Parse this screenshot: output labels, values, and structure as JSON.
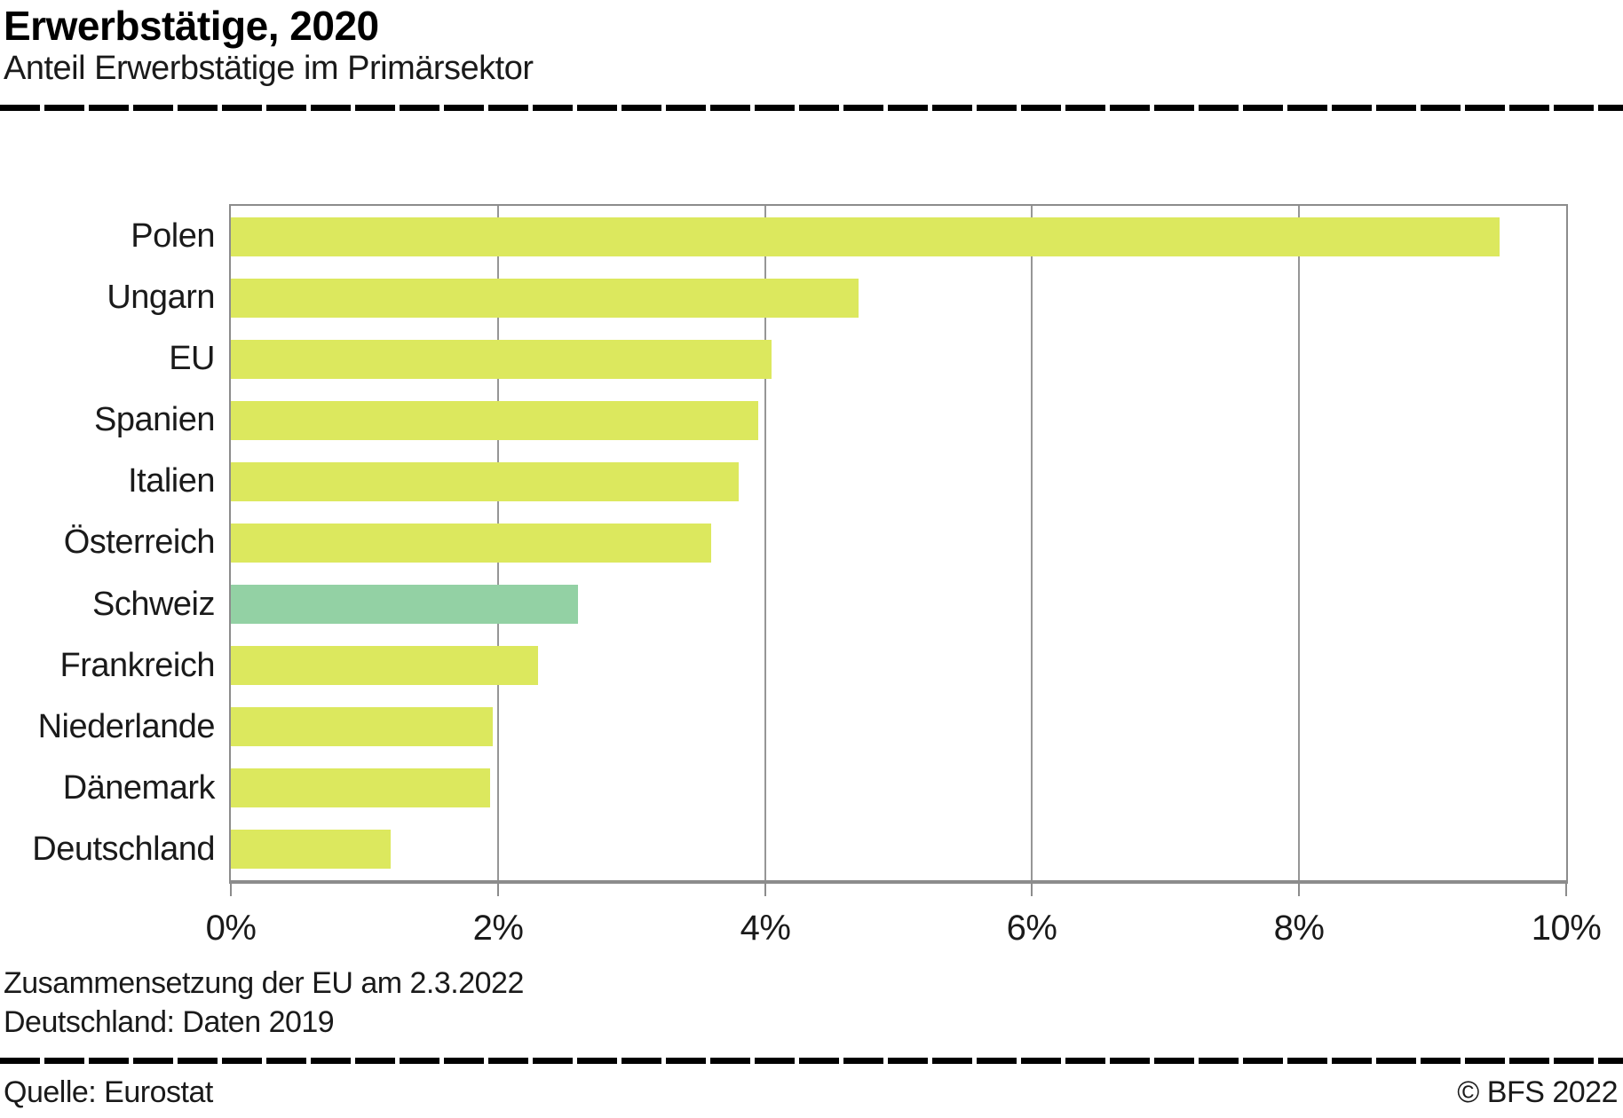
{
  "header": {
    "title": "Erwerbstätige, 2020",
    "subtitle": "Anteil Erwerbstätige im Primärsektor"
  },
  "chart_data": {
    "type": "bar",
    "orientation": "horizontal",
    "title": "Erwerbstätige, 2020",
    "subtitle": "Anteil Erwerbstätige im Primärsektor",
    "categories": [
      "Polen",
      "Ungarn",
      "EU",
      "Spanien",
      "Italien",
      "Österreich",
      "Schweiz",
      "Frankreich",
      "Niederlande",
      "Dänemark",
      "Deutschland"
    ],
    "values": [
      9.5,
      4.7,
      4.05,
      3.95,
      3.8,
      3.6,
      2.6,
      2.3,
      1.96,
      1.94,
      1.2
    ],
    "unit": "%",
    "highlight_category": "Schweiz",
    "xlim": [
      0,
      10
    ],
    "x_tick_values": [
      0,
      2,
      4,
      6,
      8,
      10
    ],
    "x_tick_labels": [
      "0%",
      "2%",
      "4%",
      "6%",
      "8%",
      "10%"
    ],
    "grid": true,
    "legend": "none",
    "bar_color": "#dce85e",
    "highlight_color": "#93d1a4",
    "axis_color": "#8c8c8c"
  },
  "footnotes": {
    "line1": "Zusammensetzung der EU am 2.3.2022",
    "line2": "Deutschland: Daten 2019"
  },
  "footer": {
    "source": "Quelle: Eurostat",
    "copyright": "© BFS 2022"
  }
}
